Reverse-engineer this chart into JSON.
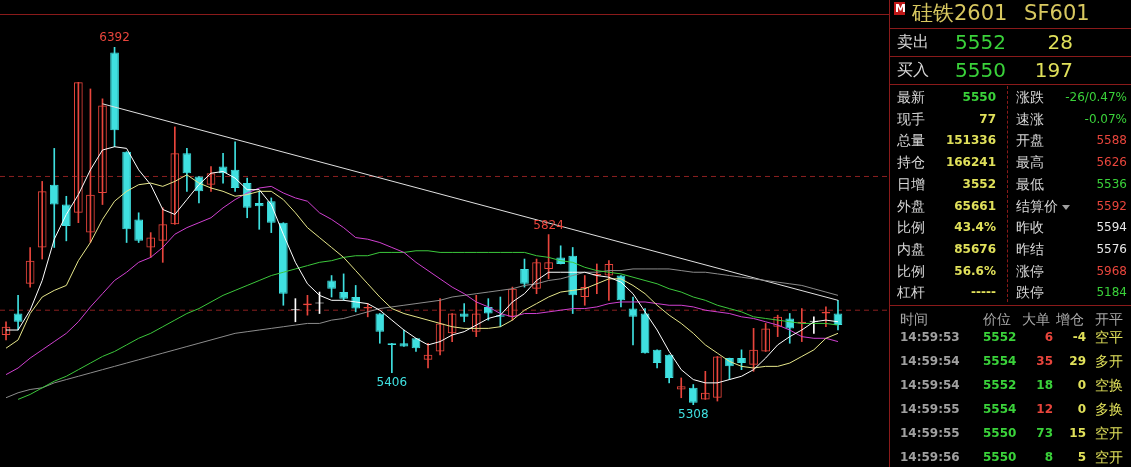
{
  "chart_data": [
    {
      "type": "candlestick",
      "categories": [
        null,
        null,
        null,
        null,
        null,
        null,
        null,
        null,
        null,
        null,
        null,
        null,
        null,
        null,
        null,
        null,
        null,
        null,
        null,
        null,
        null,
        null,
        null,
        null,
        null,
        null,
        null,
        null,
        null,
        null,
        null,
        null,
        null,
        null,
        null,
        null,
        null,
        null,
        null,
        null,
        null,
        null,
        null,
        null,
        null,
        null,
        null,
        null,
        null,
        null,
        null,
        null,
        null,
        null,
        null,
        null,
        null,
        null,
        null,
        null,
        null,
        null,
        null,
        null,
        null,
        null,
        null,
        null,
        null,
        null
      ],
      "ohlc": [
        [
          5520,
          5560,
          5505,
          5545
        ],
        [
          5585,
          5640,
          5535,
          5560
        ],
        [
          5675,
          5785,
          5665,
          5745
        ],
        [
          5785,
          5985,
          5750,
          5955
        ],
        [
          5975,
          6085,
          5785,
          5915
        ],
        [
          5915,
          5940,
          5805,
          5850
        ],
        [
          5890,
          6285,
          5860,
          6285
        ],
        [
          5830,
          6265,
          5800,
          5945
        ],
        [
          5950,
          6235,
          5915,
          6215
        ],
        [
          6375,
          6392,
          6090,
          6140
        ],
        [
          6075,
          6075,
          5800,
          5840
        ],
        [
          5870,
          5890,
          5800,
          5805
        ],
        [
          5785,
          5830,
          5755,
          5815
        ],
        [
          5805,
          5905,
          5740,
          5855
        ],
        [
          5855,
          6150,
          5855,
          6070
        ],
        [
          6070,
          6085,
          5955,
          6010
        ],
        [
          6000,
          6000,
          5920,
          5955
        ],
        [
          5975,
          6030,
          5955,
          6010
        ],
        [
          6030,
          6070,
          5980,
          6010
        ],
        [
          6020,
          6105,
          5955,
          5965
        ],
        [
          5980,
          5995,
          5875,
          5905
        ],
        [
          5920,
          5955,
          5840,
          5910
        ],
        [
          5925,
          5935,
          5830,
          5860
        ],
        [
          5860,
          5860,
          5610,
          5645
        ],
        [
          5595,
          5630,
          5560,
          5595
        ],
        [
          5610,
          5640,
          5580,
          5615
        ],
        [
          5615,
          5650,
          5585,
          5615
        ],
        [
          5685,
          5700,
          5635,
          5660
        ],
        [
          5650,
          5705,
          5625,
          5630
        ],
        [
          5635,
          5670,
          5590,
          5600
        ],
        [
          5600,
          5615,
          5575,
          5605
        ],
        [
          5585,
          5585,
          5495,
          5530
        ],
        [
          5495,
          5495,
          5406,
          5490
        ],
        [
          5495,
          5535,
          5485,
          5485
        ],
        [
          5510,
          5510,
          5470,
          5480
        ],
        [
          5445,
          5495,
          5420,
          5460
        ],
        [
          5470,
          5630,
          5460,
          5555
        ],
        [
          5525,
          5585,
          5500,
          5585
        ],
        [
          5585,
          5615,
          5560,
          5575
        ],
        [
          5530,
          5640,
          5515,
          5585
        ],
        [
          5605,
          5630,
          5565,
          5585
        ],
        [
          5580,
          5635,
          5545,
          5575
        ],
        [
          5575,
          5665,
          5565,
          5660
        ],
        [
          5720,
          5750,
          5665,
          5675
        ],
        [
          5660,
          5750,
          5645,
          5740
        ],
        [
          5720,
          5824,
          5690,
          5740
        ],
        [
          5755,
          5790,
          5735,
          5735
        ],
        [
          5760,
          5785,
          5585,
          5640
        ],
        [
          5635,
          5700,
          5610,
          5665
        ],
        [
          5700,
          5735,
          5645,
          5705
        ],
        [
          5700,
          5745,
          5625,
          5735
        ],
        [
          5700,
          5700,
          5605,
          5625
        ],
        [
          5600,
          5635,
          5490,
          5575
        ],
        [
          5585,
          5600,
          5465,
          5465
        ],
        [
          5475,
          5475,
          5420,
          5435
        ],
        [
          5460,
          5460,
          5375,
          5390
        ],
        [
          5355,
          5390,
          5330,
          5365
        ],
        [
          5360,
          5370,
          5308,
          5315
        ],
        [
          5325,
          5410,
          5325,
          5345
        ],
        [
          5330,
          5455,
          5320,
          5455
        ],
        [
          5450,
          5450,
          5385,
          5425
        ],
        [
          5450,
          5475,
          5415,
          5435
        ],
        [
          5430,
          5540,
          5410,
          5475
        ],
        [
          5470,
          5555,
          5470,
          5540
        ],
        [
          5545,
          5580,
          5515,
          5575
        ],
        [
          5570,
          5585,
          5495,
          5540
        ],
        [
          5555,
          5600,
          5500,
          5560
        ],
        [
          5560,
          5575,
          5525,
          5560
        ],
        [
          5585,
          5605,
          5545,
          5590
        ],
        [
          5585,
          5625,
          5535,
          5550
        ]
      ],
      "series": [
        {
          "type": "line",
          "color": "#ffffff",
          "values": [
            5535,
            5535,
            5595,
            5685,
            5810,
            5885,
            5945,
            6020,
            6080,
            6090,
            6085,
            6020,
            5975,
            5900,
            5885,
            5930,
            5975,
            6010,
            6015,
            5995,
            5960,
            5960,
            5915,
            5825,
            5740,
            5675,
            5640,
            5625,
            5625,
            5620,
            5615,
            5595,
            5565,
            5535,
            5510,
            5490,
            5500,
            5520,
            5530,
            5550,
            5570,
            5580,
            5620,
            5645,
            5685,
            5710,
            5710,
            5710,
            5710,
            5700,
            5695,
            5680,
            5645,
            5590,
            5535,
            5470,
            5415,
            5385,
            5375,
            5375,
            5385,
            5395,
            5415,
            5450,
            5490,
            5515,
            5535,
            5560,
            5565,
            5560
          ]
        },
        {
          "type": "line",
          "color": "#e6e68a",
          "values": [
            5480,
            5505,
            5585,
            5635,
            5655,
            5670,
            5745,
            5800,
            5870,
            5925,
            5955,
            5975,
            5980,
            5970,
            5985,
            6005,
            5980,
            5965,
            5955,
            5940,
            5945,
            5955,
            5955,
            5930,
            5890,
            5845,
            5815,
            5785,
            5755,
            5715,
            5675,
            5635,
            5600,
            5585,
            5575,
            5565,
            5555,
            5545,
            5540,
            5540,
            5540,
            5545,
            5565,
            5595,
            5615,
            5635,
            5650,
            5655,
            5660,
            5675,
            5690,
            5690,
            5670,
            5645,
            5610,
            5580,
            5555,
            5525,
            5490,
            5465,
            5440,
            5425,
            5420,
            5425,
            5425,
            5435,
            5455,
            5475,
            5510,
            5525
          ]
        },
        {
          "type": "line",
          "color": "#d040d0",
          "values": [
            5400,
            5420,
            5450,
            5475,
            5500,
            5525,
            5560,
            5605,
            5645,
            5685,
            5710,
            5740,
            5755,
            5785,
            5825,
            5845,
            5860,
            5875,
            5905,
            5930,
            5950,
            5965,
            5970,
            5950,
            5935,
            5925,
            5890,
            5870,
            5845,
            5815,
            5810,
            5800,
            5785,
            5770,
            5740,
            5715,
            5690,
            5665,
            5645,
            5620,
            5605,
            5585,
            5575,
            5585,
            5585,
            5590,
            5595,
            5600,
            5600,
            5605,
            5615,
            5620,
            5620,
            5620,
            5615,
            5610,
            5610,
            5605,
            5595,
            5590,
            5585,
            5575,
            5570,
            5560,
            5550,
            5535,
            5515,
            5510,
            5510,
            5500
          ]
        },
        {
          "type": "line",
          "color": "#3cc83c",
          "values": [
            null,
            5325,
            5340,
            5360,
            5380,
            5395,
            5415,
            5435,
            5455,
            5470,
            5490,
            5510,
            5525,
            5545,
            5565,
            5585,
            5600,
            5620,
            5640,
            5655,
            5670,
            5685,
            5700,
            5710,
            5720,
            5730,
            5740,
            5745,
            5755,
            5760,
            5760,
            5770,
            5770,
            5770,
            5775,
            5775,
            5770,
            5770,
            5770,
            5770,
            5770,
            5770,
            5770,
            5770,
            5760,
            5755,
            5745,
            5740,
            5725,
            5715,
            5710,
            5705,
            5695,
            5685,
            5675,
            5660,
            5650,
            5635,
            5625,
            5610,
            5600,
            5590,
            5575,
            5570,
            5565,
            5560,
            5555,
            5555,
            5555,
            5550
          ]
        },
        {
          "type": "line",
          "color": "#8c8c8c",
          "values": [
            5330,
            5345,
            5355,
            5360,
            5375,
            5385,
            5395,
            5405,
            5415,
            5425,
            5435,
            5445,
            5455,
            5465,
            5475,
            5485,
            5495,
            5505,
            5515,
            5525,
            5530,
            5535,
            5540,
            5545,
            5550,
            5555,
            5555,
            5565,
            5570,
            5580,
            5590,
            5600,
            5605,
            5610,
            5615,
            5620,
            5625,
            5635,
            5640,
            5645,
            5650,
            5655,
            5660,
            5670,
            5675,
            5685,
            5690,
            5700,
            5710,
            5710,
            5715,
            5715,
            5720,
            5720,
            5720,
            5720,
            5715,
            5710,
            5710,
            5705,
            5700,
            5695,
            5690,
            5685,
            5680,
            5675,
            5670,
            5660,
            5650,
            5640
          ]
        },
        {
          "type": "line",
          "color": "#e0e0e0",
          "values": [
            null,
            null,
            null,
            null,
            null,
            null,
            null,
            null,
            6220,
            null,
            null,
            null,
            null,
            null,
            null,
            null,
            null,
            null,
            null,
            null,
            null,
            null,
            null,
            null,
            null,
            null,
            null,
            null,
            null,
            null,
            null,
            null,
            null,
            null,
            null,
            null,
            null,
            null,
            null,
            null,
            null,
            null,
            null,
            null,
            null,
            null,
            null,
            null,
            null,
            null,
            null,
            null,
            null,
            null,
            null,
            null,
            null,
            null,
            null,
            null,
            null,
            null,
            null,
            null,
            null,
            null,
            null,
            null,
            null,
            5625
          ]
        }
      ],
      "ref_lines": [
        {
          "axis": "y",
          "value": 6000,
          "color": "#8b2020",
          "line_style": "dashed"
        },
        {
          "axis": "y",
          "value": 5595,
          "color": "#8b2020",
          "line_style": "dashed"
        }
      ],
      "annotations": [
        {
          "text": "6392",
          "y": 6392
        },
        {
          "text": "5824",
          "y": 5824
        },
        {
          "text": "5406",
          "y": 5406
        },
        {
          "text": "5308",
          "y": 5308
        }
      ]
    },
    {
      "type": "other",
      "title": "硅铁2601 SF601",
      "annotations": [
        "M",
        "卖出",
        "5552",
        "28",
        "买入",
        "5550",
        "197",
        "最新",
        "5550",
        "涨跌",
        "-26/0.47%",
        "现手",
        "77",
        "速涨",
        "-0.07%",
        "总量",
        "151336",
        "开盘",
        "5588",
        "持仓",
        "166241",
        "最高",
        "5626",
        "日增",
        "3552",
        "最低",
        "5536",
        "外盘",
        "65661",
        "结算价",
        "5592",
        "比例",
        "43.4%",
        "昨收",
        "5594",
        "内盘",
        "85676",
        "昨结",
        "5576",
        "比例",
        "56.6%",
        "涨停",
        "5968",
        "杠杆",
        "-----",
        "跌停",
        "5184",
        "时间",
        "价位",
        "大单",
        "增仓",
        "开平",
        "14:59:53",
        "5552",
        "6",
        "-4",
        "空平",
        "14:59:54",
        "5554",
        "35",
        "29",
        "多开",
        "14:59:54",
        "5552",
        "18",
        "0",
        "空换",
        "14:59:55",
        "5554",
        "12",
        "0",
        "多换",
        "14:59:55",
        "5550",
        "73",
        "15",
        "空开",
        "14:59:56",
        "5550",
        "8",
        "5",
        "空开"
      ]
    }
  ]
}
